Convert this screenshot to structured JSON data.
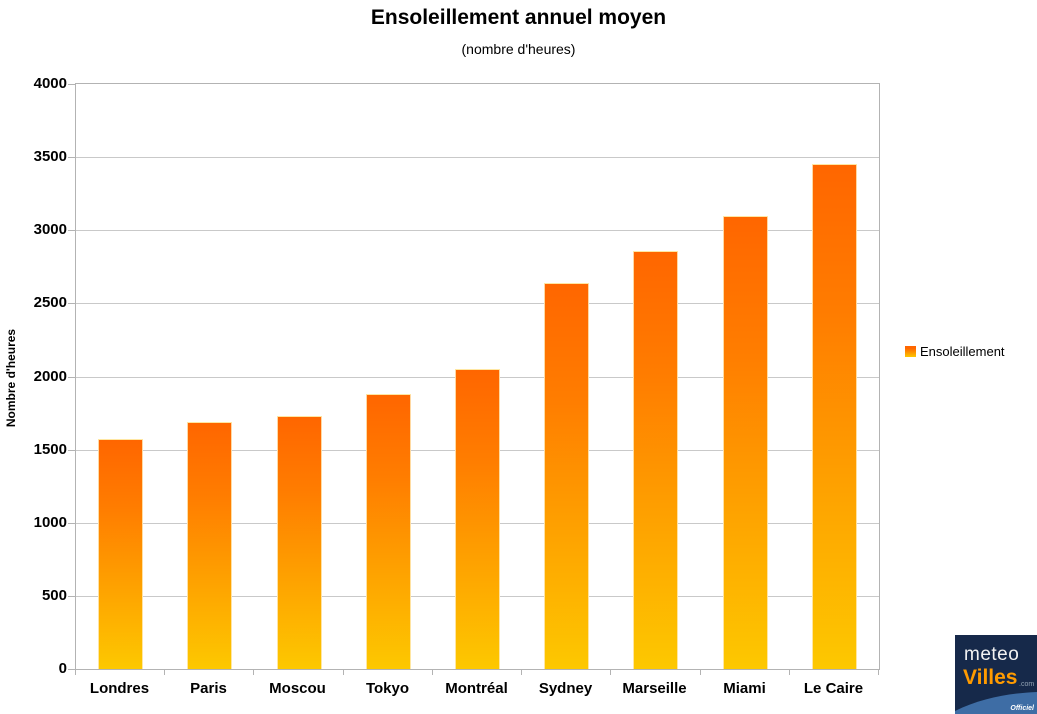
{
  "chart_data": {
    "type": "bar",
    "title": "Ensoleillement annuel moyen",
    "subtitle": "(nombre d'heures)",
    "xlabel": "",
    "ylabel": "Nombre d'heures",
    "categories": [
      "Londres",
      "Paris",
      "Moscou",
      "Tokyo",
      "Montréal",
      "Sydney",
      "Marseille",
      "Miami",
      "Le Caire"
    ],
    "values": [
      1570,
      1690,
      1730,
      1880,
      2050,
      2640,
      2860,
      3100,
      3450
    ],
    "ylim": [
      0,
      4000
    ],
    "yticks": [
      0,
      500,
      1000,
      1500,
      2000,
      2500,
      3000,
      3500,
      4000
    ],
    "grid": true,
    "legend": {
      "entries": [
        "Ensoleillement"
      ],
      "position": "right-middle"
    }
  },
  "colors": {
    "bar_gradient_top": "#ff6600",
    "bar_gradient_mid": "#ff7d00",
    "bar_gradient_bottom": "#fdc800",
    "gridline": "#c9c9c9",
    "axis_frame": "#b3b3b3",
    "text": "#000000"
  },
  "logo": {
    "word1": "meteo",
    "word2": "Villes",
    "suffix": ".com",
    "badge": "Officiel",
    "bg_color": "#16294a",
    "word1_color": "#f2f2f2",
    "word2_color": "#ff9b00",
    "suffix_color": "#93a3b4",
    "band_color": "#3e6da5"
  }
}
